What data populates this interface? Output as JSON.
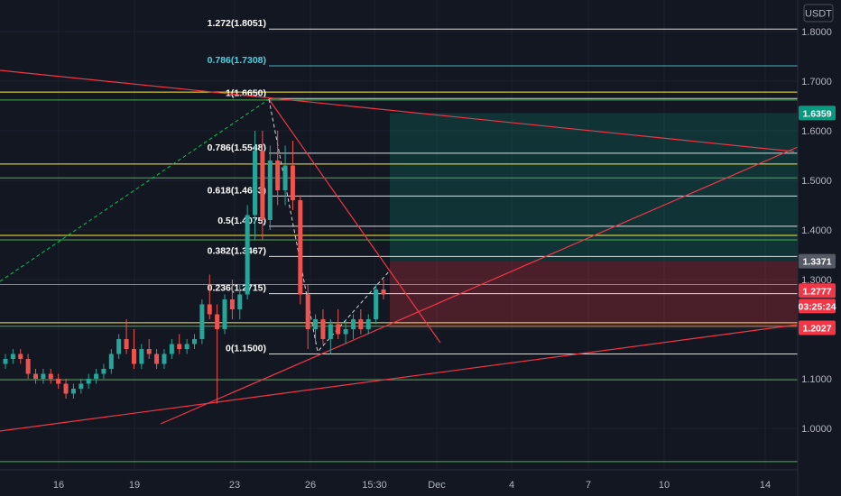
{
  "chart_data": {
    "type": "candlestick",
    "currency": "USDT",
    "y_axis": {
      "range": [
        0.925,
        1.835
      ],
      "ticks": [
        "1.0000",
        "1.1000",
        "1.2000",
        "1.3000",
        "1.4000",
        "1.5000",
        "1.6000",
        "1.7000",
        "1.8000"
      ]
    },
    "x_axis": {
      "labels": [
        "16",
        "19",
        "23",
        "26",
        "15:30",
        "Dec",
        "4",
        "7",
        "10",
        "14"
      ]
    },
    "fib_levels": [
      {
        "label": "1.272(1.8051)",
        "value": 1.8051,
        "color": "#ffffff"
      },
      {
        "label": "0.786(1.7308)",
        "value": 1.7308,
        "color": "#4dd0e1"
      },
      {
        "label": "1(1.6650)",
        "value": 1.665,
        "color": "#ffffff"
      },
      {
        "label": "0.786(1.5548)",
        "value": 1.5548,
        "color": "#ffffff"
      },
      {
        "label": "0.618(1.4683)",
        "value": 1.4683,
        "color": "#ffffff"
      },
      {
        "label": "0.5(1.4075)",
        "value": 1.4075,
        "color": "#ffffff"
      },
      {
        "label": "0.382(1.3467)",
        "value": 1.3467,
        "color": "#ffffff"
      },
      {
        "label": "0.236(1.2715)",
        "value": 1.2715,
        "color": "#ffffff"
      },
      {
        "label": "0(1.1500)",
        "value": 1.15,
        "color": "#ffffff"
      }
    ],
    "horizontal_levels": [
      {
        "value": 1.678,
        "color": "#ffeb3b"
      },
      {
        "value": 1.662,
        "color": "#4caf50"
      },
      {
        "value": 1.533,
        "color": "#ffeb3b"
      },
      {
        "value": 1.505,
        "color": "#4caf50"
      },
      {
        "value": 1.389,
        "color": "#ffeb3b"
      },
      {
        "value": 1.38,
        "color": "#4caf50"
      },
      {
        "value": 1.29,
        "color": "#4caf50"
      },
      {
        "value": 1.213,
        "color": "#ffeb3b"
      },
      {
        "value": 1.206,
        "color": "#4caf50"
      },
      {
        "value": 1.098,
        "color": "#4caf50"
      },
      {
        "value": 0.933,
        "color": "#4caf50"
      }
    ],
    "price_tags": [
      {
        "label": "1.6359",
        "value": 1.6359,
        "color": "#089981"
      },
      {
        "label": "1.3371",
        "value": 1.3371,
        "color": "#555a66"
      },
      {
        "label": "1.2777",
        "value": 1.2777,
        "color": "#f23645"
      },
      {
        "label": "03:25:24",
        "value": 1.2467,
        "color": "#f23645"
      },
      {
        "label": "1.2027",
        "value": 1.2027,
        "color": "#f23645"
      }
    ],
    "position": {
      "target": 1.6359,
      "entry": 1.3371,
      "stop": 1.2027
    },
    "candles": [
      [
        1.13,
        1.15,
        1.12,
        1.14
      ],
      [
        1.14,
        1.16,
        1.13,
        1.15
      ],
      [
        1.15,
        1.16,
        1.13,
        1.14
      ],
      [
        1.14,
        1.15,
        1.1,
        1.11
      ],
      [
        1.11,
        1.12,
        1.09,
        1.1
      ],
      [
        1.1,
        1.12,
        1.09,
        1.11
      ],
      [
        1.11,
        1.12,
        1.09,
        1.1
      ],
      [
        1.1,
        1.11,
        1.08,
        1.09
      ],
      [
        1.09,
        1.1,
        1.06,
        1.07
      ],
      [
        1.07,
        1.09,
        1.06,
        1.08
      ],
      [
        1.08,
        1.1,
        1.07,
        1.09
      ],
      [
        1.09,
        1.11,
        1.08,
        1.1
      ],
      [
        1.1,
        1.12,
        1.09,
        1.11
      ],
      [
        1.11,
        1.13,
        1.1,
        1.12
      ],
      [
        1.12,
        1.16,
        1.11,
        1.15
      ],
      [
        1.15,
        1.19,
        1.14,
        1.18
      ],
      [
        1.18,
        1.22,
        1.15,
        1.16
      ],
      [
        1.16,
        1.2,
        1.12,
        1.13
      ],
      [
        1.13,
        1.17,
        1.12,
        1.16
      ],
      [
        1.16,
        1.18,
        1.14,
        1.15
      ],
      [
        1.15,
        1.16,
        1.12,
        1.13
      ],
      [
        1.13,
        1.16,
        1.12,
        1.15
      ],
      [
        1.15,
        1.18,
        1.14,
        1.17
      ],
      [
        1.17,
        1.19,
        1.15,
        1.16
      ],
      [
        1.16,
        1.18,
        1.15,
        1.17
      ],
      [
        1.17,
        1.19,
        1.16,
        1.18
      ],
      [
        1.18,
        1.26,
        1.17,
        1.25
      ],
      [
        1.25,
        1.31,
        1.22,
        1.23
      ],
      [
        1.23,
        1.25,
        1.05,
        1.2
      ],
      [
        1.2,
        1.27,
        1.19,
        1.26
      ],
      [
        1.26,
        1.3,
        1.22,
        1.24
      ],
      [
        1.24,
        1.29,
        1.22,
        1.27
      ],
      [
        1.27,
        1.45,
        1.26,
        1.43
      ],
      [
        1.43,
        1.6,
        1.38,
        1.56
      ],
      [
        1.56,
        1.6,
        1.38,
        1.42
      ],
      [
        1.42,
        1.57,
        1.4,
        1.54
      ],
      [
        1.54,
        1.6,
        1.45,
        1.48
      ],
      [
        1.48,
        1.57,
        1.45,
        1.53
      ],
      [
        1.53,
        1.58,
        1.44,
        1.46
      ],
      [
        1.46,
        1.47,
        1.25,
        1.27
      ],
      [
        1.27,
        1.29,
        1.16,
        1.2
      ],
      [
        1.2,
        1.23,
        1.17,
        1.22
      ],
      [
        1.22,
        1.24,
        1.17,
        1.18
      ],
      [
        1.18,
        1.22,
        1.15,
        1.21
      ],
      [
        1.21,
        1.24,
        1.18,
        1.19
      ],
      [
        1.19,
        1.22,
        1.17,
        1.2
      ],
      [
        1.2,
        1.23,
        1.18,
        1.22
      ],
      [
        1.22,
        1.24,
        1.19,
        1.2
      ],
      [
        1.2,
        1.23,
        1.19,
        1.22
      ],
      [
        1.22,
        1.29,
        1.21,
        1.28
      ],
      [
        1.28,
        1.3,
        1.26,
        1.27
      ]
    ]
  }
}
